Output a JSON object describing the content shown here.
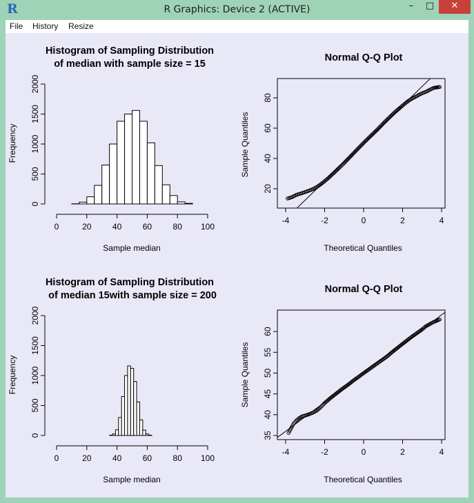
{
  "window": {
    "title": "R Graphics: Device 2 (ACTIVE)",
    "minimize_glyph": "–",
    "maximize_glyph": "□",
    "close_glyph": "✕",
    "app_icon": "R"
  },
  "menu": {
    "items": [
      "File",
      "History",
      "Resize"
    ]
  },
  "colors": {
    "window_frame": "#9fd3b8",
    "plot_background": "#e9e8f7",
    "close_button": "#c7413a"
  },
  "panels": {
    "hist1": {
      "title_line1": "Histogram of Sampling Distribution",
      "title_line2": "of median with sample size =  15",
      "xlabel": "Sample median",
      "ylabel": "Frequency"
    },
    "qq1": {
      "title": "Normal Q-Q Plot",
      "xlabel": "Theoretical Quantiles",
      "ylabel": "Sample Quantiles"
    },
    "hist2": {
      "title_line1": "Histogram of Sampling Distribution",
      "title_line2": "of median 15with sample size =  200",
      "xlabel": "Sample median",
      "ylabel": "Frequency"
    },
    "qq2": {
      "title": "Normal Q-Q Plot",
      "xlabel": "Theoretical Quantiles",
      "ylabel": "Sample Quantiles"
    }
  },
  "chart_data": [
    {
      "type": "bar",
      "id": "hist1",
      "title": "Histogram of Sampling Distribution of median with sample size =  15",
      "xlabel": "Sample median",
      "ylabel": "Frequency",
      "xlim": [
        0,
        100
      ],
      "ylim": [
        0,
        2000
      ],
      "x_ticks": [
        0,
        20,
        40,
        60,
        80,
        100
      ],
      "y_ticks": [
        0,
        500,
        1000,
        1500,
        2000
      ],
      "bin_edges": [
        10,
        15,
        20,
        25,
        30,
        35,
        40,
        45,
        50,
        55,
        60,
        65,
        70,
        75,
        80,
        85,
        90
      ],
      "values": [
        3,
        30,
        120,
        310,
        650,
        1000,
        1380,
        1500,
        1560,
        1380,
        1020,
        640,
        320,
        140,
        35,
        10
      ],
      "grid": false
    },
    {
      "type": "scatter",
      "id": "qq1",
      "title": "Normal Q-Q Plot",
      "xlabel": "Theoretical Quantiles",
      "ylabel": "Sample Quantiles",
      "xlim": [
        -4,
        4
      ],
      "ylim": [
        10,
        90
      ],
      "x_ticks": [
        -4,
        -2,
        0,
        2,
        4
      ],
      "y_ticks": [
        20,
        40,
        60,
        80
      ],
      "reference_line": {
        "intercept": 50,
        "slope": 12.5
      },
      "points": [
        [
          -3.9,
          13.6
        ],
        [
          -3.7,
          14.4
        ],
        [
          -3.55,
          15.3
        ],
        [
          -3.45,
          16.0
        ],
        [
          -3.3,
          16.6
        ],
        [
          -3.1,
          17.4
        ],
        [
          -2.95,
          18.1
        ],
        [
          -2.8,
          18.8
        ],
        [
          -2.6,
          19.8
        ],
        [
          -2.4,
          21.2
        ],
        [
          -2.2,
          23.0
        ],
        [
          -2.0,
          25.0
        ],
        [
          -1.8,
          27.2
        ],
        [
          -1.5,
          30.8
        ],
        [
          -1.2,
          34.5
        ],
        [
          -1.0,
          37.0
        ],
        [
          -0.7,
          41.0
        ],
        [
          -0.4,
          45.0
        ],
        [
          0.0,
          50.3
        ],
        [
          0.4,
          55.3
        ],
        [
          0.7,
          59.0
        ],
        [
          1.0,
          63.0
        ],
        [
          1.3,
          66.8
        ],
        [
          1.6,
          70.5
        ],
        [
          1.9,
          73.8
        ],
        [
          2.1,
          76.0
        ],
        [
          2.3,
          78.0
        ],
        [
          2.5,
          79.6
        ],
        [
          2.7,
          81.0
        ],
        [
          2.9,
          82.4
        ],
        [
          3.05,
          83.3
        ],
        [
          3.2,
          84.0
        ],
        [
          3.35,
          85.0
        ],
        [
          3.5,
          86.0
        ],
        [
          3.6,
          86.6
        ],
        [
          3.9,
          87.2
        ]
      ]
    },
    {
      "type": "bar",
      "id": "hist2",
      "title": "Histogram of Sampling Distribution of median 15with sample size =  200",
      "xlabel": "Sample median",
      "ylabel": "Frequency",
      "xlim": [
        0,
        100
      ],
      "ylim": [
        0,
        2000
      ],
      "x_ticks": [
        0,
        20,
        40,
        60,
        80,
        100
      ],
      "y_ticks": [
        0,
        500,
        1000,
        1500,
        2000
      ],
      "bin_edges": [
        35,
        37,
        39,
        41,
        43,
        45,
        47,
        49,
        51,
        53,
        55,
        57,
        59,
        61,
        63
      ],
      "values": [
        5,
        25,
        95,
        300,
        650,
        1000,
        1160,
        1120,
        900,
        560,
        260,
        90,
        25,
        5
      ],
      "grid": false
    },
    {
      "type": "scatter",
      "id": "qq2",
      "title": "Normal Q-Q Plot",
      "xlabel": "Theoretical Quantiles",
      "ylabel": "Sample Quantiles",
      "xlim": [
        -4,
        4
      ],
      "ylim": [
        35,
        64
      ],
      "x_ticks": [
        -4,
        -2,
        0,
        2,
        4
      ],
      "y_ticks": [
        35,
        40,
        45,
        50,
        55,
        60
      ],
      "reference_line": {
        "intercept": 50,
        "slope": 3.5
      },
      "points": [
        [
          -3.85,
          35.6
        ],
        [
          -3.6,
          37.8
        ],
        [
          -3.45,
          38.6
        ],
        [
          -3.3,
          39.2
        ],
        [
          -3.15,
          39.6
        ],
        [
          -3.0,
          39.8
        ],
        [
          -2.8,
          40.1
        ],
        [
          -2.6,
          40.5
        ],
        [
          -2.4,
          41.0
        ],
        [
          -2.2,
          41.8
        ],
        [
          -2.0,
          42.8
        ],
        [
          -1.7,
          44.0
        ],
        [
          -1.4,
          45.1
        ],
        [
          -1.1,
          46.2
        ],
        [
          -0.8,
          47.2
        ],
        [
          -0.5,
          48.3
        ],
        [
          -0.2,
          49.3
        ],
        [
          0.0,
          50.0
        ],
        [
          0.3,
          51.0
        ],
        [
          0.6,
          52.0
        ],
        [
          0.9,
          53.0
        ],
        [
          1.2,
          54.0
        ],
        [
          1.5,
          55.2
        ],
        [
          1.8,
          56.3
        ],
        [
          2.1,
          57.4
        ],
        [
          2.4,
          58.5
        ],
        [
          2.7,
          59.5
        ],
        [
          3.0,
          60.5
        ],
        [
          3.2,
          61.3
        ],
        [
          3.4,
          61.8
        ],
        [
          3.6,
          62.3
        ],
        [
          3.9,
          62.9
        ]
      ]
    }
  ]
}
